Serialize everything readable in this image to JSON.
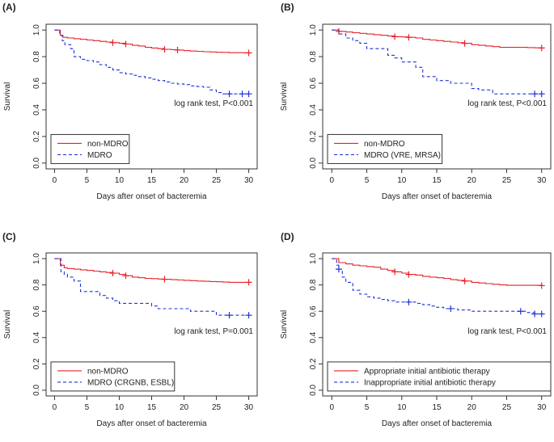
{
  "colors": {
    "non_mdro": "#e8222a",
    "mdro": "#2233d9",
    "axis": "#333333"
  },
  "chart_data": [
    {
      "type": "line",
      "panel_label": "(A)",
      "xlabel": "Days after onset of bacteremia",
      "ylabel": "Survival",
      "xlim": [
        0,
        30
      ],
      "ylim": [
        0,
        1
      ],
      "x_ticks": [
        0,
        5,
        10,
        15,
        20,
        25,
        30
      ],
      "y_ticks": [
        0.0,
        0.2,
        0.4,
        0.6,
        0.8,
        1.0
      ],
      "x_tick_labels": [
        "0",
        "5",
        "10",
        "15",
        "20",
        "25",
        "30"
      ],
      "y_tick_labels": [
        "0.0",
        "0.2",
        "0.4",
        "0.6",
        "0.8",
        "1.0"
      ],
      "annotation": "log rank test, P<0.001",
      "legend_position": "bottom-left",
      "series": [
        {
          "name": "non-MDRO",
          "color": "#e8222a",
          "dash": "solid",
          "x": [
            0,
            0.9,
            1.3,
            2,
            3,
            4,
            5,
            6,
            7,
            8,
            9,
            10,
            11,
            12,
            13,
            14,
            15,
            16,
            17,
            18,
            19,
            20,
            21,
            22,
            23,
            24,
            25,
            26,
            27,
            28,
            29,
            30
          ],
          "y": [
            1.0,
            0.96,
            0.945,
            0.94,
            0.935,
            0.93,
            0.925,
            0.92,
            0.915,
            0.91,
            0.905,
            0.9,
            0.895,
            0.885,
            0.88,
            0.87,
            0.865,
            0.86,
            0.855,
            0.852,
            0.85,
            0.845,
            0.842,
            0.84,
            0.837,
            0.835,
            0.833,
            0.832,
            0.83,
            0.83,
            0.829,
            0.828
          ],
          "censor_x": [
            9,
            11,
            17,
            19,
            30
          ]
        },
        {
          "name": "MDRO",
          "color": "#2233d9",
          "dash": "dashed",
          "x": [
            0,
            0.8,
            1.2,
            1.6,
            2.5,
            3,
            4,
            5,
            6,
            7,
            8,
            9,
            10,
            11,
            12,
            13,
            14,
            15,
            16,
            17,
            18,
            19,
            20,
            21,
            22,
            23,
            24,
            25,
            26,
            27,
            28,
            29,
            30
          ],
          "y": [
            1.0,
            0.96,
            0.92,
            0.89,
            0.86,
            0.8,
            0.78,
            0.77,
            0.76,
            0.74,
            0.72,
            0.7,
            0.68,
            0.67,
            0.66,
            0.65,
            0.64,
            0.63,
            0.62,
            0.61,
            0.6,
            0.595,
            0.59,
            0.58,
            0.575,
            0.57,
            0.55,
            0.53,
            0.52,
            0.52,
            0.52,
            0.52,
            0.52
          ],
          "censor_x": [
            27,
            29,
            30
          ]
        }
      ]
    },
    {
      "type": "line",
      "panel_label": "(B)",
      "xlabel": "Days after onset of bacteremia",
      "ylabel": "Survival",
      "xlim": [
        0,
        30
      ],
      "ylim": [
        0,
        1
      ],
      "x_ticks": [
        0,
        5,
        10,
        15,
        20,
        25,
        30
      ],
      "y_ticks": [
        0.0,
        0.2,
        0.4,
        0.6,
        0.8,
        1.0
      ],
      "x_tick_labels": [
        "0",
        "5",
        "10",
        "15",
        "20",
        "25",
        "30"
      ],
      "y_tick_labels": [
        "0.0",
        "0.2",
        "0.4",
        "0.6",
        "0.8",
        "1.0"
      ],
      "annotation": "log rank test, P<0.001",
      "legend_position": "bottom-left",
      "series": [
        {
          "name": "non-MDRO",
          "color": "#e8222a",
          "dash": "solid",
          "x": [
            0,
            1,
            2,
            3,
            4,
            5,
            6,
            7,
            8,
            9,
            10,
            11,
            12,
            13,
            14,
            15,
            16,
            17,
            18,
            19,
            20,
            21,
            22,
            23,
            24,
            25,
            26,
            27,
            28,
            29,
            30
          ],
          "y": [
            1.0,
            0.99,
            0.985,
            0.98,
            0.975,
            0.97,
            0.965,
            0.96,
            0.955,
            0.95,
            0.948,
            0.945,
            0.94,
            0.93,
            0.925,
            0.92,
            0.915,
            0.91,
            0.905,
            0.9,
            0.89,
            0.885,
            0.88,
            0.875,
            0.87,
            0.87,
            0.87,
            0.87,
            0.868,
            0.866,
            0.865
          ],
          "censor_x": [
            1,
            9,
            11,
            19,
            30
          ]
        },
        {
          "name": "MDRO (VRE, MRSA)",
          "color": "#2233d9",
          "dash": "dashed",
          "x": [
            0,
            1,
            2,
            3,
            4,
            5,
            6,
            7,
            8,
            9,
            10,
            11,
            12,
            13,
            14,
            15,
            16,
            17,
            18,
            19,
            20,
            21,
            22,
            23,
            24,
            25,
            26,
            27,
            28,
            29,
            30
          ],
          "y": [
            1.0,
            0.97,
            0.94,
            0.92,
            0.9,
            0.86,
            0.86,
            0.86,
            0.81,
            0.79,
            0.76,
            0.76,
            0.72,
            0.65,
            0.65,
            0.62,
            0.62,
            0.6,
            0.6,
            0.6,
            0.56,
            0.55,
            0.55,
            0.52,
            0.52,
            0.52,
            0.52,
            0.52,
            0.52,
            0.52,
            0.52
          ],
          "censor_x": [
            29,
            30
          ]
        }
      ]
    },
    {
      "type": "line",
      "panel_label": "(C)",
      "xlabel": "Days after onset of bacteremia",
      "ylabel": "Survival",
      "xlim": [
        0,
        30
      ],
      "ylim": [
        0,
        1
      ],
      "x_ticks": [
        0,
        5,
        10,
        15,
        20,
        25,
        30
      ],
      "y_ticks": [
        0.0,
        0.2,
        0.4,
        0.6,
        0.8,
        1.0
      ],
      "x_tick_labels": [
        "0",
        "5",
        "10",
        "15",
        "20",
        "25",
        "30"
      ],
      "y_tick_labels": [
        "0.0",
        "0.2",
        "0.4",
        "0.6",
        "0.8",
        "1.0"
      ],
      "annotation": "log rank test, P=0.001",
      "legend_position": "bottom-left",
      "series": [
        {
          "name": "non-MDRO",
          "color": "#e8222a",
          "dash": "solid",
          "x": [
            0,
            0.9,
            1.5,
            2,
            3,
            4,
            5,
            6,
            7,
            8,
            9,
            10,
            11,
            12,
            13,
            14,
            15,
            16,
            17,
            18,
            19,
            20,
            21,
            22,
            23,
            24,
            25,
            26,
            27,
            28,
            29,
            30
          ],
          "y": [
            1.0,
            0.95,
            0.93,
            0.925,
            0.92,
            0.915,
            0.91,
            0.905,
            0.9,
            0.895,
            0.89,
            0.88,
            0.87,
            0.86,
            0.855,
            0.85,
            0.848,
            0.845,
            0.843,
            0.84,
            0.838,
            0.835,
            0.833,
            0.83,
            0.828,
            0.826,
            0.824,
            0.822,
            0.82,
            0.82,
            0.82,
            0.82
          ],
          "censor_x": [
            9,
            11,
            17,
            30
          ]
        },
        {
          "name": "MDRO (CRGNB, ESBL)",
          "color": "#2233d9",
          "dash": "dashed",
          "x": [
            0,
            1,
            1.5,
            2,
            3,
            4,
            5,
            6,
            7,
            8,
            9,
            10,
            11,
            12,
            13,
            14,
            15,
            16,
            17,
            18,
            19,
            20,
            21,
            22,
            23,
            24,
            25,
            26,
            27,
            28,
            29,
            30
          ],
          "y": [
            1.0,
            0.9,
            0.88,
            0.86,
            0.83,
            0.75,
            0.75,
            0.75,
            0.72,
            0.7,
            0.68,
            0.66,
            0.66,
            0.66,
            0.66,
            0.66,
            0.64,
            0.62,
            0.62,
            0.62,
            0.62,
            0.62,
            0.6,
            0.6,
            0.6,
            0.6,
            0.57,
            0.57,
            0.57,
            0.57,
            0.57,
            0.57
          ],
          "censor_x": [
            27,
            30
          ]
        }
      ]
    },
    {
      "type": "line",
      "panel_label": "(D)",
      "xlabel": "Days after onset of bacteremia",
      "ylabel": "Survival",
      "xlim": [
        0,
        30
      ],
      "ylim": [
        0,
        1
      ],
      "x_ticks": [
        0,
        5,
        10,
        15,
        20,
        25,
        30
      ],
      "y_ticks": [
        0.0,
        0.2,
        0.4,
        0.6,
        0.8,
        1.0
      ],
      "x_tick_labels": [
        "0",
        "5",
        "10",
        "15",
        "20",
        "25",
        "30"
      ],
      "y_tick_labels": [
        "0.0",
        "0.2",
        "0.4",
        "0.6",
        "0.8",
        "1.0"
      ],
      "annotation": "log rank test, P<0.001",
      "legend_position": "bottom-left",
      "series": [
        {
          "name": "Appropriate initial antibiotic therapy",
          "color": "#e8222a",
          "dash": "solid",
          "x": [
            0,
            1,
            2,
            3,
            4,
            5,
            6,
            7,
            8,
            9,
            10,
            11,
            12,
            13,
            14,
            15,
            16,
            17,
            18,
            19,
            20,
            21,
            22,
            23,
            24,
            25,
            26,
            27,
            28,
            29,
            30
          ],
          "y": [
            1.0,
            0.97,
            0.96,
            0.95,
            0.945,
            0.94,
            0.935,
            0.92,
            0.91,
            0.9,
            0.89,
            0.88,
            0.875,
            0.865,
            0.86,
            0.855,
            0.85,
            0.84,
            0.835,
            0.83,
            0.82,
            0.815,
            0.81,
            0.805,
            0.8,
            0.797,
            0.797,
            0.797,
            0.797,
            0.797,
            0.795
          ],
          "censor_x": [
            9,
            11,
            19,
            30
          ]
        },
        {
          "name": "Inappropriate initial antibiotic therapy",
          "color": "#2233d9",
          "dash": "dashed",
          "x": [
            0,
            0.7,
            1,
            1.5,
            2,
            3,
            4,
            5,
            6,
            7,
            8,
            9,
            10,
            11,
            12,
            13,
            14,
            15,
            16,
            17,
            18,
            19,
            20,
            21,
            22,
            23,
            24,
            25,
            26,
            27,
            28,
            29,
            30
          ],
          "y": [
            1.0,
            0.95,
            0.92,
            0.86,
            0.82,
            0.76,
            0.73,
            0.71,
            0.7,
            0.69,
            0.68,
            0.67,
            0.67,
            0.67,
            0.66,
            0.65,
            0.64,
            0.63,
            0.62,
            0.62,
            0.61,
            0.61,
            0.6,
            0.6,
            0.6,
            0.6,
            0.6,
            0.6,
            0.6,
            0.6,
            0.59,
            0.58,
            0.58
          ],
          "censor_x": [
            1,
            11,
            17,
            27,
            29,
            30
          ]
        }
      ]
    }
  ]
}
